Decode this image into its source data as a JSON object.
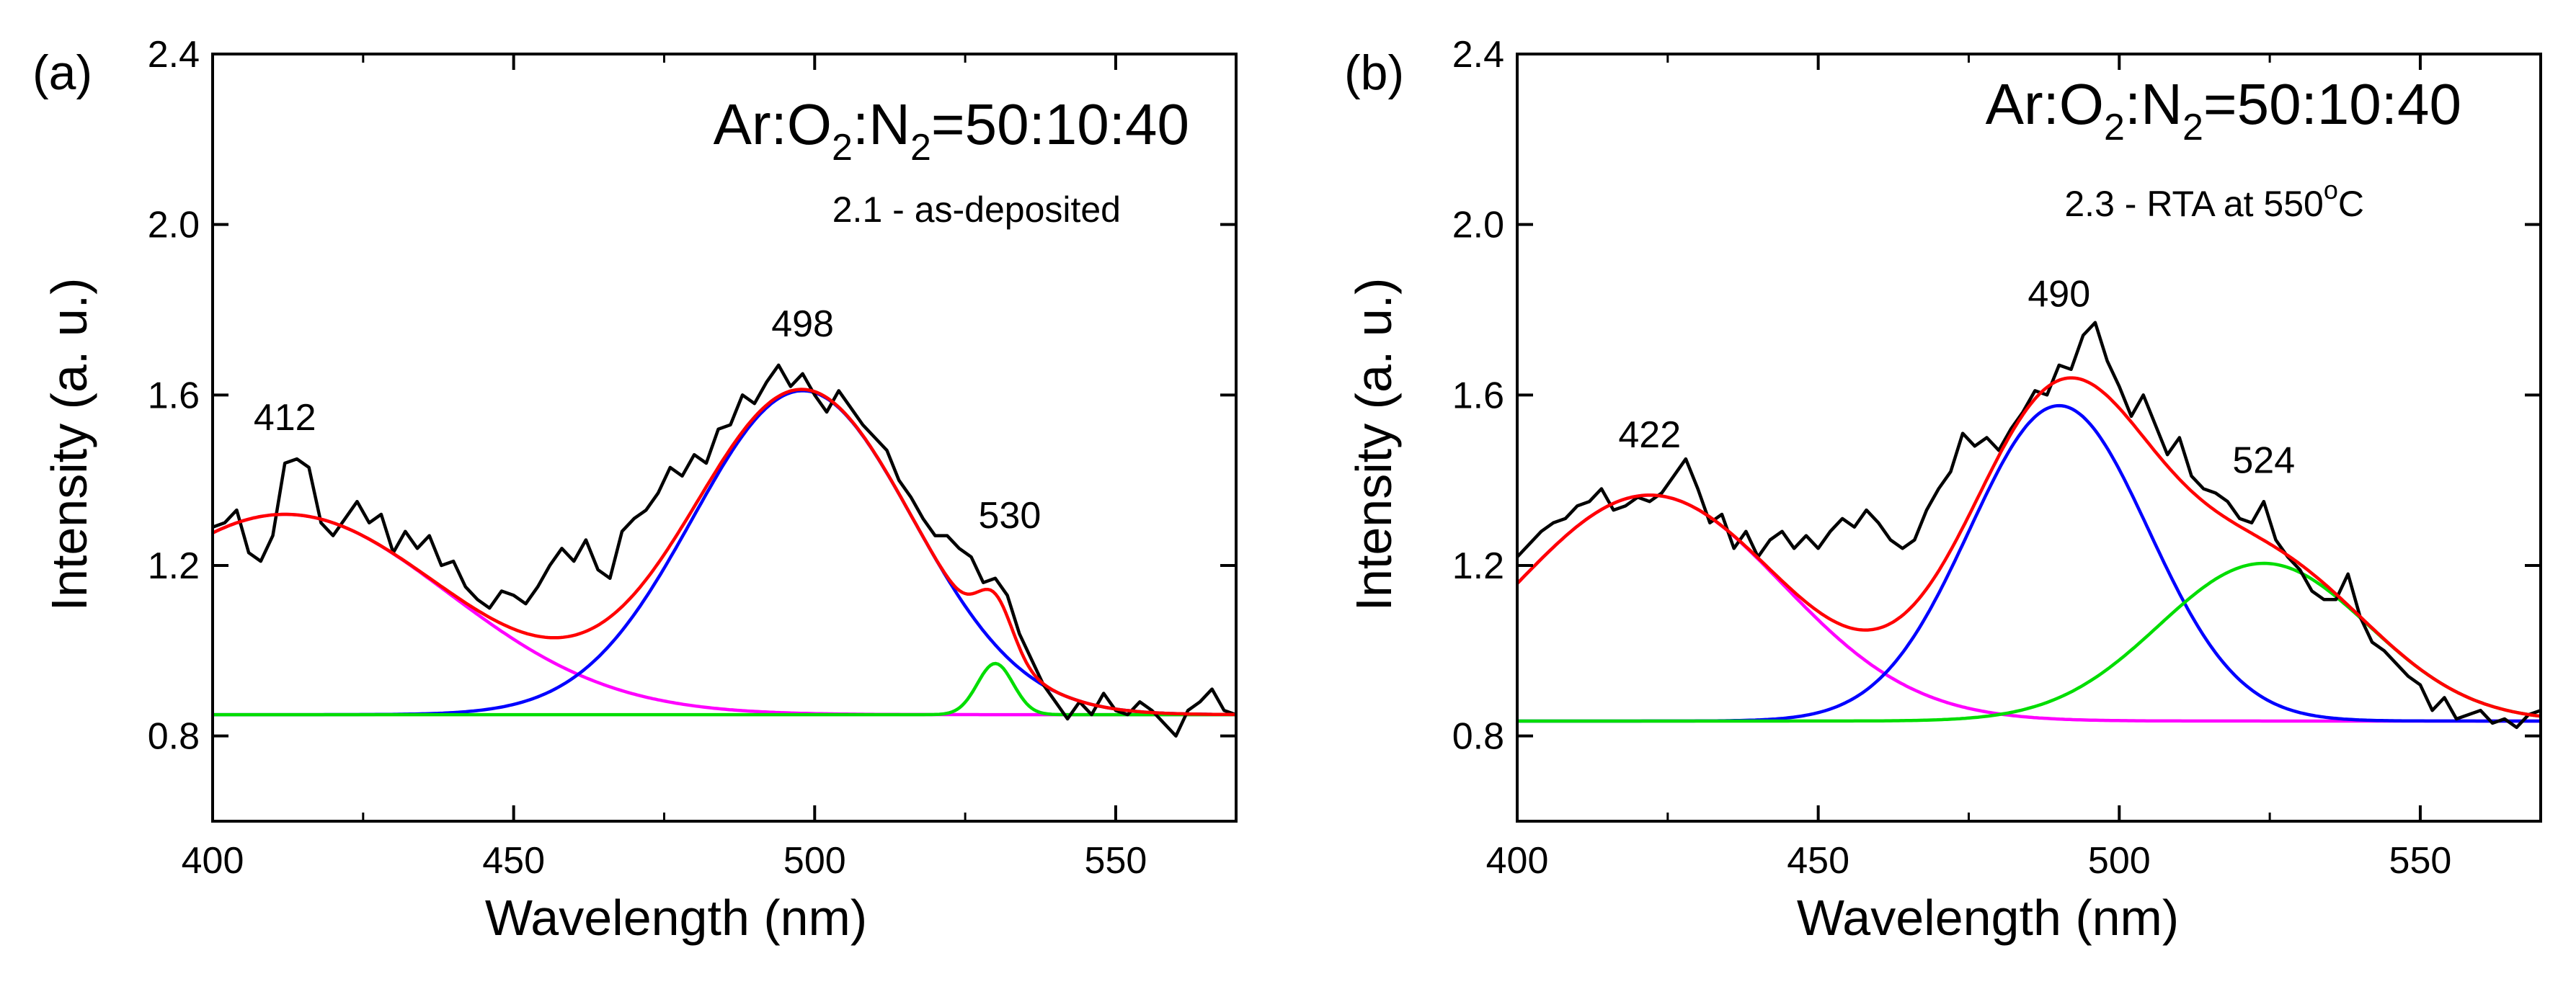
{
  "chart_data": [
    {
      "type": "line",
      "panel_label": "(a)",
      "composition": {
        "p1": "Ar:O",
        "s1": "2",
        "p2": ":N",
        "s2": "2",
        "p3": "=50:10:40"
      },
      "sample_label": "2.1 - as-deposited",
      "xlabel": "Wavelength (nm)",
      "ylabel": "Intensity (a. u.)",
      "xlim": [
        400,
        570
      ],
      "ylim": [
        0.6,
        2.4
      ],
      "xticks": [
        400,
        450,
        500,
        550
      ],
      "xtick_labels": [
        "400",
        "450",
        "500",
        "550"
      ],
      "yticks": [
        0.8,
        1.2,
        1.6,
        2.0,
        2.4
      ],
      "ytick_labels": [
        "0.8",
        "1.2",
        "1.6",
        "2.0",
        "2.4"
      ],
      "baseline": 0.85,
      "peaks": [
        {
          "center": 412,
          "amplitude": 0.47,
          "fwhm": 64,
          "color": "#ff00ff",
          "label": "412"
        },
        {
          "center": 498,
          "amplitude": 0.76,
          "fwhm": 43,
          "color": "#0000ff",
          "label": "498"
        },
        {
          "center": 530,
          "amplitude": 0.12,
          "fwhm": 7,
          "color": "#00dd00",
          "label": "530"
        }
      ],
      "fit_color": "#ff0000",
      "data_color": "#000000",
      "data_points": [
        [
          400,
          1.29
        ],
        [
          402,
          1.3
        ],
        [
          404,
          1.33
        ],
        [
          406,
          1.23
        ],
        [
          408,
          1.21
        ],
        [
          410,
          1.27
        ],
        [
          412,
          1.44
        ],
        [
          414,
          1.45
        ],
        [
          416,
          1.43
        ],
        [
          418,
          1.3
        ],
        [
          420,
          1.27
        ],
        [
          422,
          1.31
        ],
        [
          424,
          1.35
        ],
        [
          426,
          1.3
        ],
        [
          428,
          1.32
        ],
        [
          430,
          1.23
        ],
        [
          432,
          1.28
        ],
        [
          434,
          1.24
        ],
        [
          436,
          1.27
        ],
        [
          438,
          1.2
        ],
        [
          440,
          1.21
        ],
        [
          442,
          1.15
        ],
        [
          444,
          1.12
        ],
        [
          446,
          1.1
        ],
        [
          448,
          1.14
        ],
        [
          450,
          1.13
        ],
        [
          452,
          1.11
        ],
        [
          454,
          1.15
        ],
        [
          456,
          1.2
        ],
        [
          458,
          1.24
        ],
        [
          460,
          1.21
        ],
        [
          462,
          1.26
        ],
        [
          464,
          1.19
        ],
        [
          466,
          1.17
        ],
        [
          468,
          1.28
        ],
        [
          470,
          1.31
        ],
        [
          472,
          1.33
        ],
        [
          474,
          1.37
        ],
        [
          476,
          1.43
        ],
        [
          478,
          1.41
        ],
        [
          480,
          1.46
        ],
        [
          482,
          1.44
        ],
        [
          484,
          1.52
        ],
        [
          486,
          1.53
        ],
        [
          488,
          1.6
        ],
        [
          490,
          1.58
        ],
        [
          492,
          1.63
        ],
        [
          494,
          1.67
        ],
        [
          496,
          1.62
        ],
        [
          498,
          1.65
        ],
        [
          500,
          1.6
        ],
        [
          502,
          1.56
        ],
        [
          504,
          1.61
        ],
        [
          506,
          1.57
        ],
        [
          508,
          1.53
        ],
        [
          510,
          1.5
        ],
        [
          512,
          1.47
        ],
        [
          514,
          1.4
        ],
        [
          516,
          1.36
        ],
        [
          518,
          1.31
        ],
        [
          520,
          1.27
        ],
        [
          522,
          1.27
        ],
        [
          524,
          1.24
        ],
        [
          526,
          1.22
        ],
        [
          528,
          1.16
        ],
        [
          530,
          1.17
        ],
        [
          532,
          1.13
        ],
        [
          534,
          1.04
        ],
        [
          536,
          0.98
        ],
        [
          538,
          0.92
        ],
        [
          540,
          0.88
        ],
        [
          542,
          0.84
        ],
        [
          544,
          0.88
        ],
        [
          546,
          0.85
        ],
        [
          548,
          0.9
        ],
        [
          550,
          0.86
        ],
        [
          552,
          0.85
        ],
        [
          554,
          0.88
        ],
        [
          556,
          0.86
        ],
        [
          558,
          0.83
        ],
        [
          560,
          0.8
        ],
        [
          562,
          0.86
        ],
        [
          564,
          0.88
        ],
        [
          566,
          0.91
        ],
        [
          568,
          0.86
        ],
        [
          570,
          0.85
        ]
      ]
    },
    {
      "type": "line",
      "panel_label": "(b)",
      "composition": {
        "p1": "Ar:O",
        "s1": "2",
        "p2": ":N",
        "s2": "2",
        "p3": "=50:10:40"
      },
      "sample_label": "2.3 - RTA at 550",
      "sample_label_deg": "o",
      "sample_label_unit": "C",
      "xlabel": "Wavelength (nm)",
      "ylabel": "Intensity (a. u.)",
      "xlim": [
        400,
        570
      ],
      "ylim": [
        0.6,
        2.4
      ],
      "xticks": [
        400,
        450,
        500,
        550
      ],
      "xtick_labels": [
        "400",
        "450",
        "500",
        "550"
      ],
      "yticks": [
        0.8,
        1.2,
        1.6,
        2.0,
        2.4
      ],
      "ytick_labels": [
        "0.8",
        "1.2",
        "1.6",
        "2.0",
        "2.4"
      ],
      "baseline": 0.835,
      "peaks": [
        {
          "center": 422,
          "amplitude": 0.53,
          "fwhm": 52,
          "color": "#ff00ff",
          "label": "422"
        },
        {
          "center": 490,
          "amplitude": 0.74,
          "fwhm": 35,
          "color": "#0000ff",
          "label": "490"
        },
        {
          "center": 524,
          "amplitude": 0.37,
          "fwhm": 41,
          "color": "#00dd00",
          "label": "524"
        }
      ],
      "fit_color": "#ff0000",
      "data_color": "#000000",
      "data_points": [
        [
          400,
          1.22
        ],
        [
          402,
          1.25
        ],
        [
          404,
          1.28
        ],
        [
          406,
          1.3
        ],
        [
          408,
          1.31
        ],
        [
          410,
          1.34
        ],
        [
          412,
          1.35
        ],
        [
          414,
          1.38
        ],
        [
          416,
          1.33
        ],
        [
          418,
          1.34
        ],
        [
          420,
          1.36
        ],
        [
          422,
          1.35
        ],
        [
          424,
          1.37
        ],
        [
          426,
          1.41
        ],
        [
          428,
          1.45
        ],
        [
          430,
          1.38
        ],
        [
          432,
          1.3
        ],
        [
          434,
          1.32
        ],
        [
          436,
          1.24
        ],
        [
          438,
          1.28
        ],
        [
          440,
          1.22
        ],
        [
          442,
          1.26
        ],
        [
          444,
          1.28
        ],
        [
          446,
          1.24
        ],
        [
          448,
          1.27
        ],
        [
          450,
          1.24
        ],
        [
          452,
          1.28
        ],
        [
          454,
          1.31
        ],
        [
          456,
          1.29
        ],
        [
          458,
          1.33
        ],
        [
          460,
          1.3
        ],
        [
          462,
          1.26
        ],
        [
          464,
          1.24
        ],
        [
          466,
          1.26
        ],
        [
          468,
          1.33
        ],
        [
          470,
          1.38
        ],
        [
          472,
          1.42
        ],
        [
          474,
          1.51
        ],
        [
          476,
          1.48
        ],
        [
          478,
          1.5
        ],
        [
          480,
          1.47
        ],
        [
          482,
          1.52
        ],
        [
          484,
          1.56
        ],
        [
          486,
          1.61
        ],
        [
          488,
          1.6
        ],
        [
          490,
          1.67
        ],
        [
          492,
          1.66
        ],
        [
          494,
          1.74
        ],
        [
          496,
          1.77
        ],
        [
          498,
          1.68
        ],
        [
          500,
          1.62
        ],
        [
          502,
          1.55
        ],
        [
          504,
          1.6
        ],
        [
          506,
          1.53
        ],
        [
          508,
          1.46
        ],
        [
          510,
          1.5
        ],
        [
          512,
          1.41
        ],
        [
          514,
          1.38
        ],
        [
          516,
          1.37
        ],
        [
          518,
          1.35
        ],
        [
          520,
          1.31
        ],
        [
          522,
          1.3
        ],
        [
          524,
          1.35
        ],
        [
          526,
          1.26
        ],
        [
          528,
          1.22
        ],
        [
          530,
          1.19
        ],
        [
          532,
          1.14
        ],
        [
          534,
          1.12
        ],
        [
          536,
          1.12
        ],
        [
          538,
          1.18
        ],
        [
          540,
          1.08
        ],
        [
          542,
          1.02
        ],
        [
          544,
          1.0
        ],
        [
          546,
          0.97
        ],
        [
          548,
          0.94
        ],
        [
          550,
          0.92
        ],
        [
          552,
          0.86
        ],
        [
          554,
          0.89
        ],
        [
          556,
          0.84
        ],
        [
          558,
          0.85
        ],
        [
          560,
          0.86
        ],
        [
          562,
          0.83
        ],
        [
          564,
          0.84
        ],
        [
          566,
          0.82
        ],
        [
          568,
          0.85
        ],
        [
          570,
          0.86
        ]
      ]
    }
  ]
}
